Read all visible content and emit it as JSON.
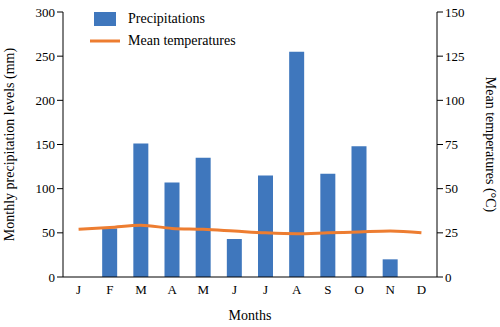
{
  "chart_data": {
    "type": "bar",
    "categories": [
      "J",
      "F",
      "M",
      "A",
      "M",
      "J",
      "J",
      "A",
      "S",
      "O",
      "N",
      "D"
    ],
    "series": [
      {
        "name": "Precipitations",
        "type": "bar",
        "color": "#3f77bd",
        "values": [
          null,
          55,
          151,
          107,
          135,
          43,
          115,
          255,
          117,
          148,
          20,
          null
        ]
      },
      {
        "name": "Mean temperatures",
        "type": "line",
        "axis": "y2",
        "color": "#ed7d31",
        "values": [
          27,
          28,
          29.3,
          27.5,
          27,
          26,
          25,
          24.5,
          25,
          25.5,
          26,
          25
        ]
      }
    ],
    "x_label": "Months",
    "y_label": "Monthly  precipitation levels (mm)",
    "y2_label": "Mean temperatures (°C)",
    "ylim": [
      0,
      300
    ],
    "yticks": [
      0,
      50,
      100,
      150,
      200,
      250,
      300
    ],
    "y2lim": [
      0,
      150
    ],
    "y2ticks": [
      0,
      25,
      50,
      75,
      100,
      125,
      150
    ],
    "legend": "top-left",
    "grid": false
  }
}
